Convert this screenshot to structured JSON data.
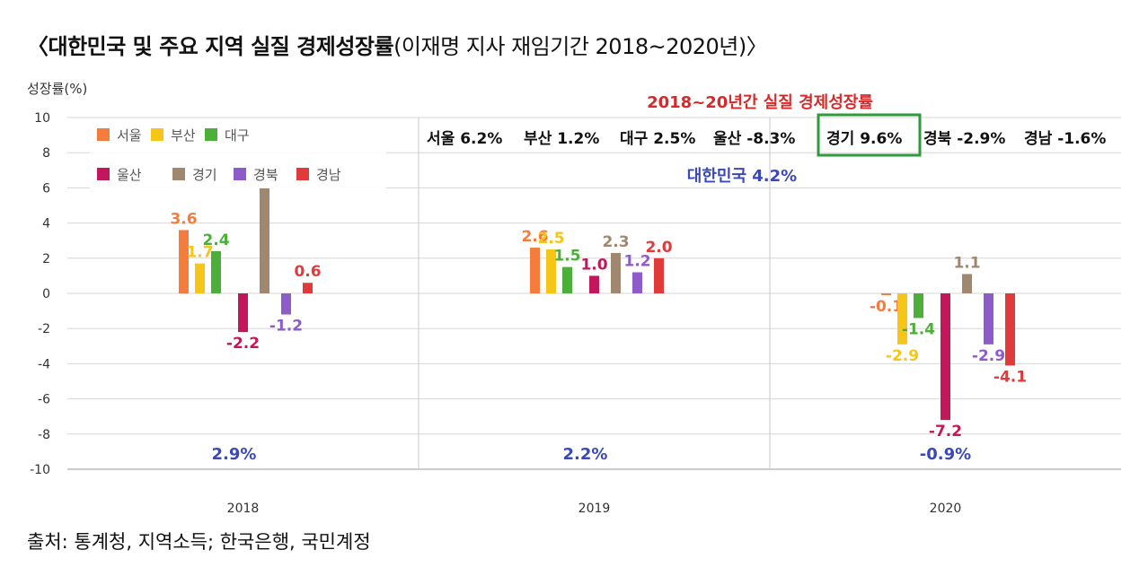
{
  "title": {
    "bold": "〈대한민국 및 주요 지역 실질 경제성장률",
    "normal": "(이재명 지사 재임기간 2018~2020년)〉"
  },
  "source": "출처: 통계청, 지역소득; 한국은행, 국민계정",
  "chart_data": {
    "type": "bar",
    "ylabel": "성장률(%)",
    "ylim": [
      -10,
      10
    ],
    "yticks": [
      10,
      8,
      6,
      4,
      2,
      0,
      -2,
      -4,
      -6,
      -8,
      -10
    ],
    "categories": [
      "2018",
      "2019",
      "2020"
    ],
    "series": [
      {
        "name": "서울",
        "color": "#f47c3c",
        "values": [
          3.6,
          2.6,
          -0.1
        ],
        "labels": [
          "3.6",
          "2.6",
          "-0.1"
        ]
      },
      {
        "name": "부산",
        "color": "#f5c518",
        "values": [
          1.7,
          2.5,
          -2.9
        ],
        "labels": [
          "1.7",
          "2.5",
          "-2.9"
        ]
      },
      {
        "name": "대구",
        "color": "#4caf3a",
        "values": [
          2.4,
          1.5,
          -1.4
        ],
        "labels": [
          "2.4",
          "1.5",
          "-1.4"
        ]
      },
      {
        "name": "울산",
        "color": "#c2185b",
        "values": [
          -2.2,
          1.0,
          -7.2
        ],
        "labels": [
          "-2.2",
          "1.0",
          "-7.2"
        ]
      },
      {
        "name": "경기",
        "color": "#a08770",
        "values": [
          6.0,
          2.3,
          1.1
        ],
        "labels": [
          "6.0",
          "2.3",
          "1.1"
        ]
      },
      {
        "name": "경북",
        "color": "#8e5cc9",
        "values": [
          -1.2,
          1.2,
          -2.9
        ],
        "labels": [
          "-1.2",
          "1.2",
          "-2.9"
        ]
      },
      {
        "name": "경남",
        "color": "#e03a3a",
        "values": [
          0.6,
          2.0,
          -4.1
        ],
        "labels": [
          "0.6",
          "2.0",
          "-4.1"
        ]
      }
    ],
    "national": {
      "values": [
        2.9,
        2.2,
        -0.9
      ],
      "labels": [
        "2.9%",
        "2.2%",
        "-0.9%"
      ],
      "color": "#3b48b8"
    },
    "legend_position": "top-left",
    "annotation": {
      "title": "2018~20년간 실질 경제성장률",
      "title_color": "#d42a2a",
      "items": [
        {
          "text": "서울 6.2%",
          "highlight": false
        },
        {
          "text": "부산 1.2%",
          "highlight": false
        },
        {
          "text": "대구 2.5%",
          "highlight": false
        },
        {
          "text": "울산 -8.3%",
          "highlight": false
        },
        {
          "text": "경기 9.6%",
          "highlight": true
        },
        {
          "text": "경북 -2.9%",
          "highlight": false
        },
        {
          "text": "경남 -1.6%",
          "highlight": false
        }
      ],
      "highlight_color": "#2e9a3e",
      "national": "대한민국 4.2%",
      "national_color": "#3b48b8"
    },
    "grid": true
  }
}
